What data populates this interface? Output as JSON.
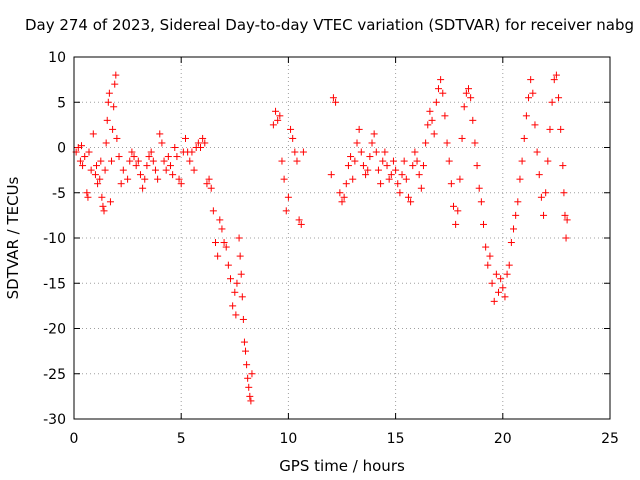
{
  "chart_data": {
    "type": "scatter",
    "title": "Day 274 of 2023, Sidereal Day-to-day VTEC variation (SDTVAR) for receiver nabg",
    "xlabel": "GPS time / hours",
    "ylabel": "SDTVAR / TECUs",
    "xlim": [
      0,
      25
    ],
    "ylim": [
      -30,
      10
    ],
    "xticks": [
      "0",
      "5",
      "10",
      "15",
      "20",
      "25"
    ],
    "yticks": [
      "10",
      "5",
      "0",
      "-5",
      "-10",
      "-15",
      "-20",
      "-25",
      "-30"
    ],
    "grid": true,
    "marker": "plus",
    "color": "#ff0000",
    "series": [
      {
        "name": "SDTVAR",
        "points": [
          [
            0.1,
            -0.5
          ],
          [
            0.2,
            0.0
          ],
          [
            0.3,
            -1.5
          ],
          [
            0.35,
            0.2
          ],
          [
            0.4,
            -2.0
          ],
          [
            0.5,
            -1.0
          ],
          [
            0.6,
            -5.0
          ],
          [
            0.65,
            -5.5
          ],
          [
            0.7,
            -0.5
          ],
          [
            0.8,
            -2.5
          ],
          [
            0.9,
            1.5
          ],
          [
            1.0,
            -3.0
          ],
          [
            1.05,
            -2.0
          ],
          [
            1.1,
            -4.0
          ],
          [
            1.2,
            -3.5
          ],
          [
            1.25,
            -1.5
          ],
          [
            1.3,
            -5.5
          ],
          [
            1.35,
            -6.5
          ],
          [
            1.4,
            -7.0
          ],
          [
            1.45,
            -2.5
          ],
          [
            1.5,
            0.5
          ],
          [
            1.55,
            3.0
          ],
          [
            1.6,
            5.0
          ],
          [
            1.65,
            6.0
          ],
          [
            1.7,
            -6.0
          ],
          [
            1.75,
            -1.5
          ],
          [
            1.8,
            2.0
          ],
          [
            1.85,
            4.5
          ],
          [
            1.9,
            7.0
          ],
          [
            1.95,
            8.0
          ],
          [
            2.0,
            1.0
          ],
          [
            2.1,
            -1.0
          ],
          [
            2.2,
            -4.0
          ],
          [
            2.3,
            -2.5
          ],
          [
            2.5,
            -3.5
          ],
          [
            2.6,
            -1.5
          ],
          [
            2.7,
            -0.5
          ],
          [
            2.8,
            -1.0
          ],
          [
            2.9,
            -2.0
          ],
          [
            3.0,
            -1.5
          ],
          [
            3.1,
            -3.0
          ],
          [
            3.2,
            -4.5
          ],
          [
            3.3,
            -3.5
          ],
          [
            3.4,
            -2.0
          ],
          [
            3.5,
            -1.0
          ],
          [
            3.6,
            -0.5
          ],
          [
            3.7,
            -1.5
          ],
          [
            3.8,
            -2.5
          ],
          [
            3.9,
            -3.5
          ],
          [
            4.0,
            1.5
          ],
          [
            4.1,
            0.5
          ],
          [
            4.2,
            -1.5
          ],
          [
            4.3,
            -2.5
          ],
          [
            4.4,
            -1.0
          ],
          [
            4.5,
            -2.0
          ],
          [
            4.6,
            -3.0
          ],
          [
            4.7,
            0.0
          ],
          [
            4.8,
            -1.0
          ],
          [
            4.9,
            -3.5
          ],
          [
            5.0,
            -4.0
          ],
          [
            5.1,
            -0.5
          ],
          [
            5.2,
            1.0
          ],
          [
            5.3,
            -0.5
          ],
          [
            5.4,
            -1.5
          ],
          [
            5.5,
            -0.5
          ],
          [
            5.6,
            -2.5
          ],
          [
            5.7,
            0.0
          ],
          [
            5.8,
            0.5
          ],
          [
            5.9,
            0.0
          ],
          [
            6.0,
            1.0
          ],
          [
            6.1,
            0.5
          ],
          [
            6.2,
            -4.0
          ],
          [
            6.3,
            -3.5
          ],
          [
            6.4,
            -4.5
          ],
          [
            6.5,
            -7.0
          ],
          [
            6.6,
            -10.5
          ],
          [
            6.7,
            -12.0
          ],
          [
            6.8,
            -8.0
          ],
          [
            6.9,
            -9.0
          ],
          [
            7.0,
            -10.5
          ],
          [
            7.1,
            -11.0
          ],
          [
            7.2,
            -13.0
          ],
          [
            7.3,
            -14.5
          ],
          [
            7.4,
            -17.5
          ],
          [
            7.5,
            -16.0
          ],
          [
            7.55,
            -18.5
          ],
          [
            7.6,
            -15.0
          ],
          [
            7.7,
            -10.0
          ],
          [
            7.75,
            -12.0
          ],
          [
            7.8,
            -14.0
          ],
          [
            7.85,
            -16.5
          ],
          [
            7.9,
            -19.0
          ],
          [
            7.95,
            -21.5
          ],
          [
            8.0,
            -22.5
          ],
          [
            8.05,
            -24.0
          ],
          [
            8.1,
            -25.5
          ],
          [
            8.15,
            -26.5
          ],
          [
            8.2,
            -27.5
          ],
          [
            8.25,
            -28.0
          ],
          [
            8.3,
            -25.0
          ],
          [
            9.3,
            2.5
          ],
          [
            9.4,
            4.0
          ],
          [
            9.5,
            3.0
          ],
          [
            9.6,
            3.5
          ],
          [
            9.7,
            -1.5
          ],
          [
            9.8,
            -3.5
          ],
          [
            9.9,
            -7.0
          ],
          [
            10.0,
            -5.5
          ],
          [
            10.1,
            2.0
          ],
          [
            10.2,
            1.0
          ],
          [
            10.3,
            -0.5
          ],
          [
            10.4,
            -1.5
          ],
          [
            10.5,
            -8.0
          ],
          [
            10.6,
            -8.5
          ],
          [
            10.7,
            -0.5
          ],
          [
            12.0,
            -3.0
          ],
          [
            12.1,
            5.5
          ],
          [
            12.2,
            5.0
          ],
          [
            12.4,
            -5.0
          ],
          [
            12.5,
            -6.0
          ],
          [
            12.6,
            -5.5
          ],
          [
            12.7,
            -4.0
          ],
          [
            12.8,
            -2.0
          ],
          [
            12.9,
            -1.0
          ],
          [
            13.0,
            -3.5
          ],
          [
            13.1,
            -1.5
          ],
          [
            13.2,
            0.5
          ],
          [
            13.3,
            2.0
          ],
          [
            13.4,
            -0.5
          ],
          [
            13.5,
            -2.0
          ],
          [
            13.6,
            -3.0
          ],
          [
            13.7,
            -2.5
          ],
          [
            13.8,
            -1.0
          ],
          [
            13.9,
            0.5
          ],
          [
            14.0,
            1.5
          ],
          [
            14.1,
            -0.5
          ],
          [
            14.2,
            -2.5
          ],
          [
            14.3,
            -4.0
          ],
          [
            14.4,
            -1.5
          ],
          [
            14.5,
            -0.5
          ],
          [
            14.6,
            -2.0
          ],
          [
            14.7,
            -3.5
          ],
          [
            14.8,
            -3.0
          ],
          [
            14.9,
            -1.5
          ],
          [
            15.0,
            -2.5
          ],
          [
            15.1,
            -4.0
          ],
          [
            15.2,
            -5.0
          ],
          [
            15.3,
            -3.0
          ],
          [
            15.4,
            -1.5
          ],
          [
            15.5,
            -3.5
          ],
          [
            15.6,
            -5.5
          ],
          [
            15.7,
            -6.0
          ],
          [
            15.8,
            -2.0
          ],
          [
            15.9,
            -0.5
          ],
          [
            16.0,
            -1.5
          ],
          [
            16.1,
            -3.0
          ],
          [
            16.2,
            -4.5
          ],
          [
            16.3,
            -2.0
          ],
          [
            16.4,
            0.5
          ],
          [
            16.5,
            2.5
          ],
          [
            16.6,
            4.0
          ],
          [
            16.7,
            3.0
          ],
          [
            16.8,
            1.5
          ],
          [
            16.9,
            5.0
          ],
          [
            17.0,
            6.5
          ],
          [
            17.1,
            7.5
          ],
          [
            17.2,
            6.0
          ],
          [
            17.3,
            3.5
          ],
          [
            17.4,
            0.5
          ],
          [
            17.5,
            -1.5
          ],
          [
            17.6,
            -4.0
          ],
          [
            17.7,
            -6.5
          ],
          [
            17.8,
            -8.5
          ],
          [
            17.9,
            -7.0
          ],
          [
            18.0,
            -3.5
          ],
          [
            18.1,
            1.0
          ],
          [
            18.2,
            4.5
          ],
          [
            18.3,
            6.0
          ],
          [
            18.4,
            6.5
          ],
          [
            18.5,
            5.5
          ],
          [
            18.6,
            3.0
          ],
          [
            18.7,
            0.5
          ],
          [
            18.8,
            -2.0
          ],
          [
            18.9,
            -4.5
          ],
          [
            19.0,
            -6.0
          ],
          [
            19.1,
            -8.5
          ],
          [
            19.2,
            -11.0
          ],
          [
            19.3,
            -13.0
          ],
          [
            19.4,
            -12.0
          ],
          [
            19.5,
            -15.0
          ],
          [
            19.6,
            -17.0
          ],
          [
            19.7,
            -14.0
          ],
          [
            19.8,
            -16.0
          ],
          [
            19.9,
            -14.5
          ],
          [
            20.0,
            -15.5
          ],
          [
            20.1,
            -16.5
          ],
          [
            20.2,
            -14.0
          ],
          [
            20.3,
            -13.0
          ],
          [
            20.4,
            -10.5
          ],
          [
            20.5,
            -9.0
          ],
          [
            20.6,
            -7.5
          ],
          [
            20.7,
            -6.0
          ],
          [
            20.8,
            -3.5
          ],
          [
            20.9,
            -1.5
          ],
          [
            21.0,
            1.0
          ],
          [
            21.1,
            3.5
          ],
          [
            21.2,
            5.5
          ],
          [
            21.3,
            7.5
          ],
          [
            21.4,
            6.0
          ],
          [
            21.5,
            2.5
          ],
          [
            21.6,
            -0.5
          ],
          [
            21.7,
            -3.0
          ],
          [
            21.8,
            -5.5
          ],
          [
            21.9,
            -7.5
          ],
          [
            22.0,
            -5.0
          ],
          [
            22.1,
            -1.5
          ],
          [
            22.2,
            2.0
          ],
          [
            22.3,
            5.0
          ],
          [
            22.4,
            7.5
          ],
          [
            22.5,
            8.0
          ],
          [
            22.6,
            5.5
          ],
          [
            22.7,
            2.0
          ],
          [
            22.8,
            -2.0
          ],
          [
            22.85,
            -5.0
          ],
          [
            22.9,
            -7.5
          ],
          [
            22.95,
            -10.0
          ],
          [
            23.0,
            -8.0
          ]
        ]
      }
    ]
  }
}
